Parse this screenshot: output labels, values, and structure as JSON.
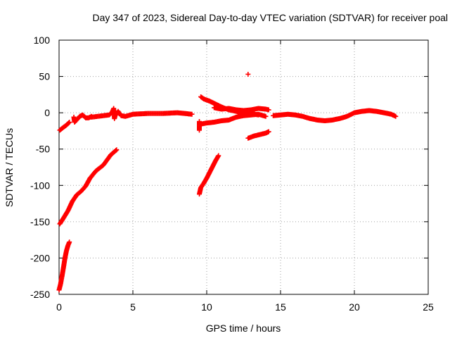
{
  "chart_data": {
    "type": "scatter",
    "title": "Day 347 of 2023, Sidereal Day-to-day VTEC variation (SDTVAR) for receiver poal",
    "xlabel": "GPS time / hours",
    "ylabel": "SDTVAR / TECUs",
    "xlim": [
      0,
      25
    ],
    "ylim": [
      -250,
      100
    ],
    "xticks": [
      0,
      5,
      10,
      15,
      20,
      25
    ],
    "yticks": [
      100,
      50,
      0,
      -50,
      -100,
      -150,
      -200,
      -250
    ],
    "xtick_labels": [
      "0",
      "5",
      "10",
      "15",
      "20",
      "25"
    ],
    "ytick_labels": [
      "100",
      "50",
      "0",
      "-50",
      "-100",
      "-150",
      "-200",
      "-250"
    ],
    "grid": true,
    "marker": "+",
    "color": "#ff0000",
    "series": [
      {
        "name": "early-small-arc",
        "points": [
          [
            0.05,
            -24
          ],
          [
            0.3,
            -20
          ],
          [
            0.5,
            -17
          ],
          [
            0.7,
            -13
          ]
        ]
      },
      {
        "name": "scattered-early",
        "points": [
          [
            1.0,
            -6
          ],
          [
            1.05,
            -13
          ],
          [
            1.4,
            -5
          ],
          [
            1.6,
            -3
          ],
          [
            1.8,
            -7
          ],
          [
            2.0,
            -7
          ],
          [
            2.2,
            -5
          ]
        ]
      },
      {
        "name": "arc-2",
        "points": [
          [
            0.05,
            -153
          ],
          [
            0.3,
            -145
          ],
          [
            0.6,
            -135
          ],
          [
            0.9,
            -122
          ],
          [
            1.2,
            -113
          ],
          [
            1.5,
            -108
          ],
          [
            1.8,
            -101
          ],
          [
            2.1,
            -90
          ],
          [
            2.5,
            -80
          ],
          [
            3.0,
            -72
          ],
          [
            3.5,
            -58
          ],
          [
            3.9,
            -51
          ]
        ]
      },
      {
        "name": "arc-3",
        "points": [
          [
            0.0,
            -244
          ],
          [
            0.1,
            -236
          ],
          [
            0.2,
            -225
          ],
          [
            0.3,
            -213
          ],
          [
            0.4,
            -200
          ],
          [
            0.5,
            -190
          ],
          [
            0.6,
            -183
          ],
          [
            0.7,
            -178
          ]
        ]
      },
      {
        "name": "band-main",
        "points": [
          [
            2.2,
            -6
          ],
          [
            2.6,
            -5
          ],
          [
            3.0,
            -4
          ],
          [
            3.4,
            -3
          ],
          [
            3.6,
            1
          ],
          [
            3.7,
            6
          ],
          [
            3.75,
            -8
          ],
          [
            3.8,
            -4
          ],
          [
            4.0,
            2
          ],
          [
            4.2,
            -4
          ],
          [
            4.5,
            -5
          ],
          [
            5.0,
            -2
          ],
          [
            6.0,
            -1
          ],
          [
            7.0,
            -1
          ],
          [
            8.0,
            0
          ],
          [
            8.5,
            -1
          ],
          [
            9.0,
            -2
          ]
        ]
      },
      {
        "name": "arc-mid-up",
        "points": [
          [
            9.5,
            -112
          ],
          [
            9.6,
            -103
          ],
          [
            9.8,
            -97
          ],
          [
            10.0,
            -90
          ],
          [
            10.2,
            -82
          ],
          [
            10.4,
            -74
          ],
          [
            10.6,
            -66
          ],
          [
            10.8,
            -59
          ]
        ]
      },
      {
        "name": "band-mid-upper",
        "points": [
          [
            9.5,
            -12
          ],
          [
            9.5,
            -24
          ],
          [
            9.6,
            22
          ],
          [
            9.8,
            19
          ],
          [
            10.2,
            16
          ],
          [
            10.6,
            12
          ],
          [
            11.0,
            8
          ],
          [
            11.5,
            4
          ],
          [
            12.0,
            2
          ],
          [
            12.5,
            -2
          ],
          [
            13.0,
            -1
          ],
          [
            13.5,
            -3
          ]
        ]
      },
      {
        "name": "band-mid-lower",
        "points": [
          [
            9.5,
            -16
          ],
          [
            10.0,
            -14
          ],
          [
            10.5,
            -13
          ],
          [
            11.0,
            -11
          ],
          [
            11.5,
            -10
          ],
          [
            12.0,
            -6
          ],
          [
            12.5,
            -4
          ],
          [
            13.0,
            -3
          ],
          [
            13.5,
            -2
          ],
          [
            14.0,
            -5
          ]
        ]
      },
      {
        "name": "band-mid-cluster",
        "points": [
          [
            10.5,
            7
          ],
          [
            11.0,
            5
          ],
          [
            11.5,
            6
          ],
          [
            12.0,
            4
          ],
          [
            12.5,
            3
          ],
          [
            13.0,
            4
          ],
          [
            13.5,
            6
          ],
          [
            14.0,
            5
          ],
          [
            14.2,
            4
          ]
        ]
      },
      {
        "name": "outlier-high",
        "points": [
          [
            12.8,
            53
          ]
        ]
      },
      {
        "name": "arc-mid-low",
        "points": [
          [
            12.8,
            -35
          ],
          [
            13.2,
            -32
          ],
          [
            13.6,
            -30
          ],
          [
            14.0,
            -28
          ],
          [
            14.2,
            -26
          ]
        ]
      },
      {
        "name": "band-late",
        "points": [
          [
            14.5,
            -4
          ],
          [
            15.0,
            -3
          ],
          [
            15.5,
            -2
          ],
          [
            16.0,
            -3
          ],
          [
            16.5,
            -5
          ],
          [
            17.0,
            -8
          ],
          [
            17.5,
            -10
          ],
          [
            18.0,
            -11
          ],
          [
            18.5,
            -10
          ],
          [
            19.0,
            -8
          ],
          [
            19.5,
            -5
          ],
          [
            20.0,
            0
          ],
          [
            20.5,
            2
          ],
          [
            21.0,
            3
          ],
          [
            21.5,
            2
          ],
          [
            22.0,
            0
          ],
          [
            22.5,
            -2
          ],
          [
            22.8,
            -5
          ]
        ]
      }
    ]
  }
}
